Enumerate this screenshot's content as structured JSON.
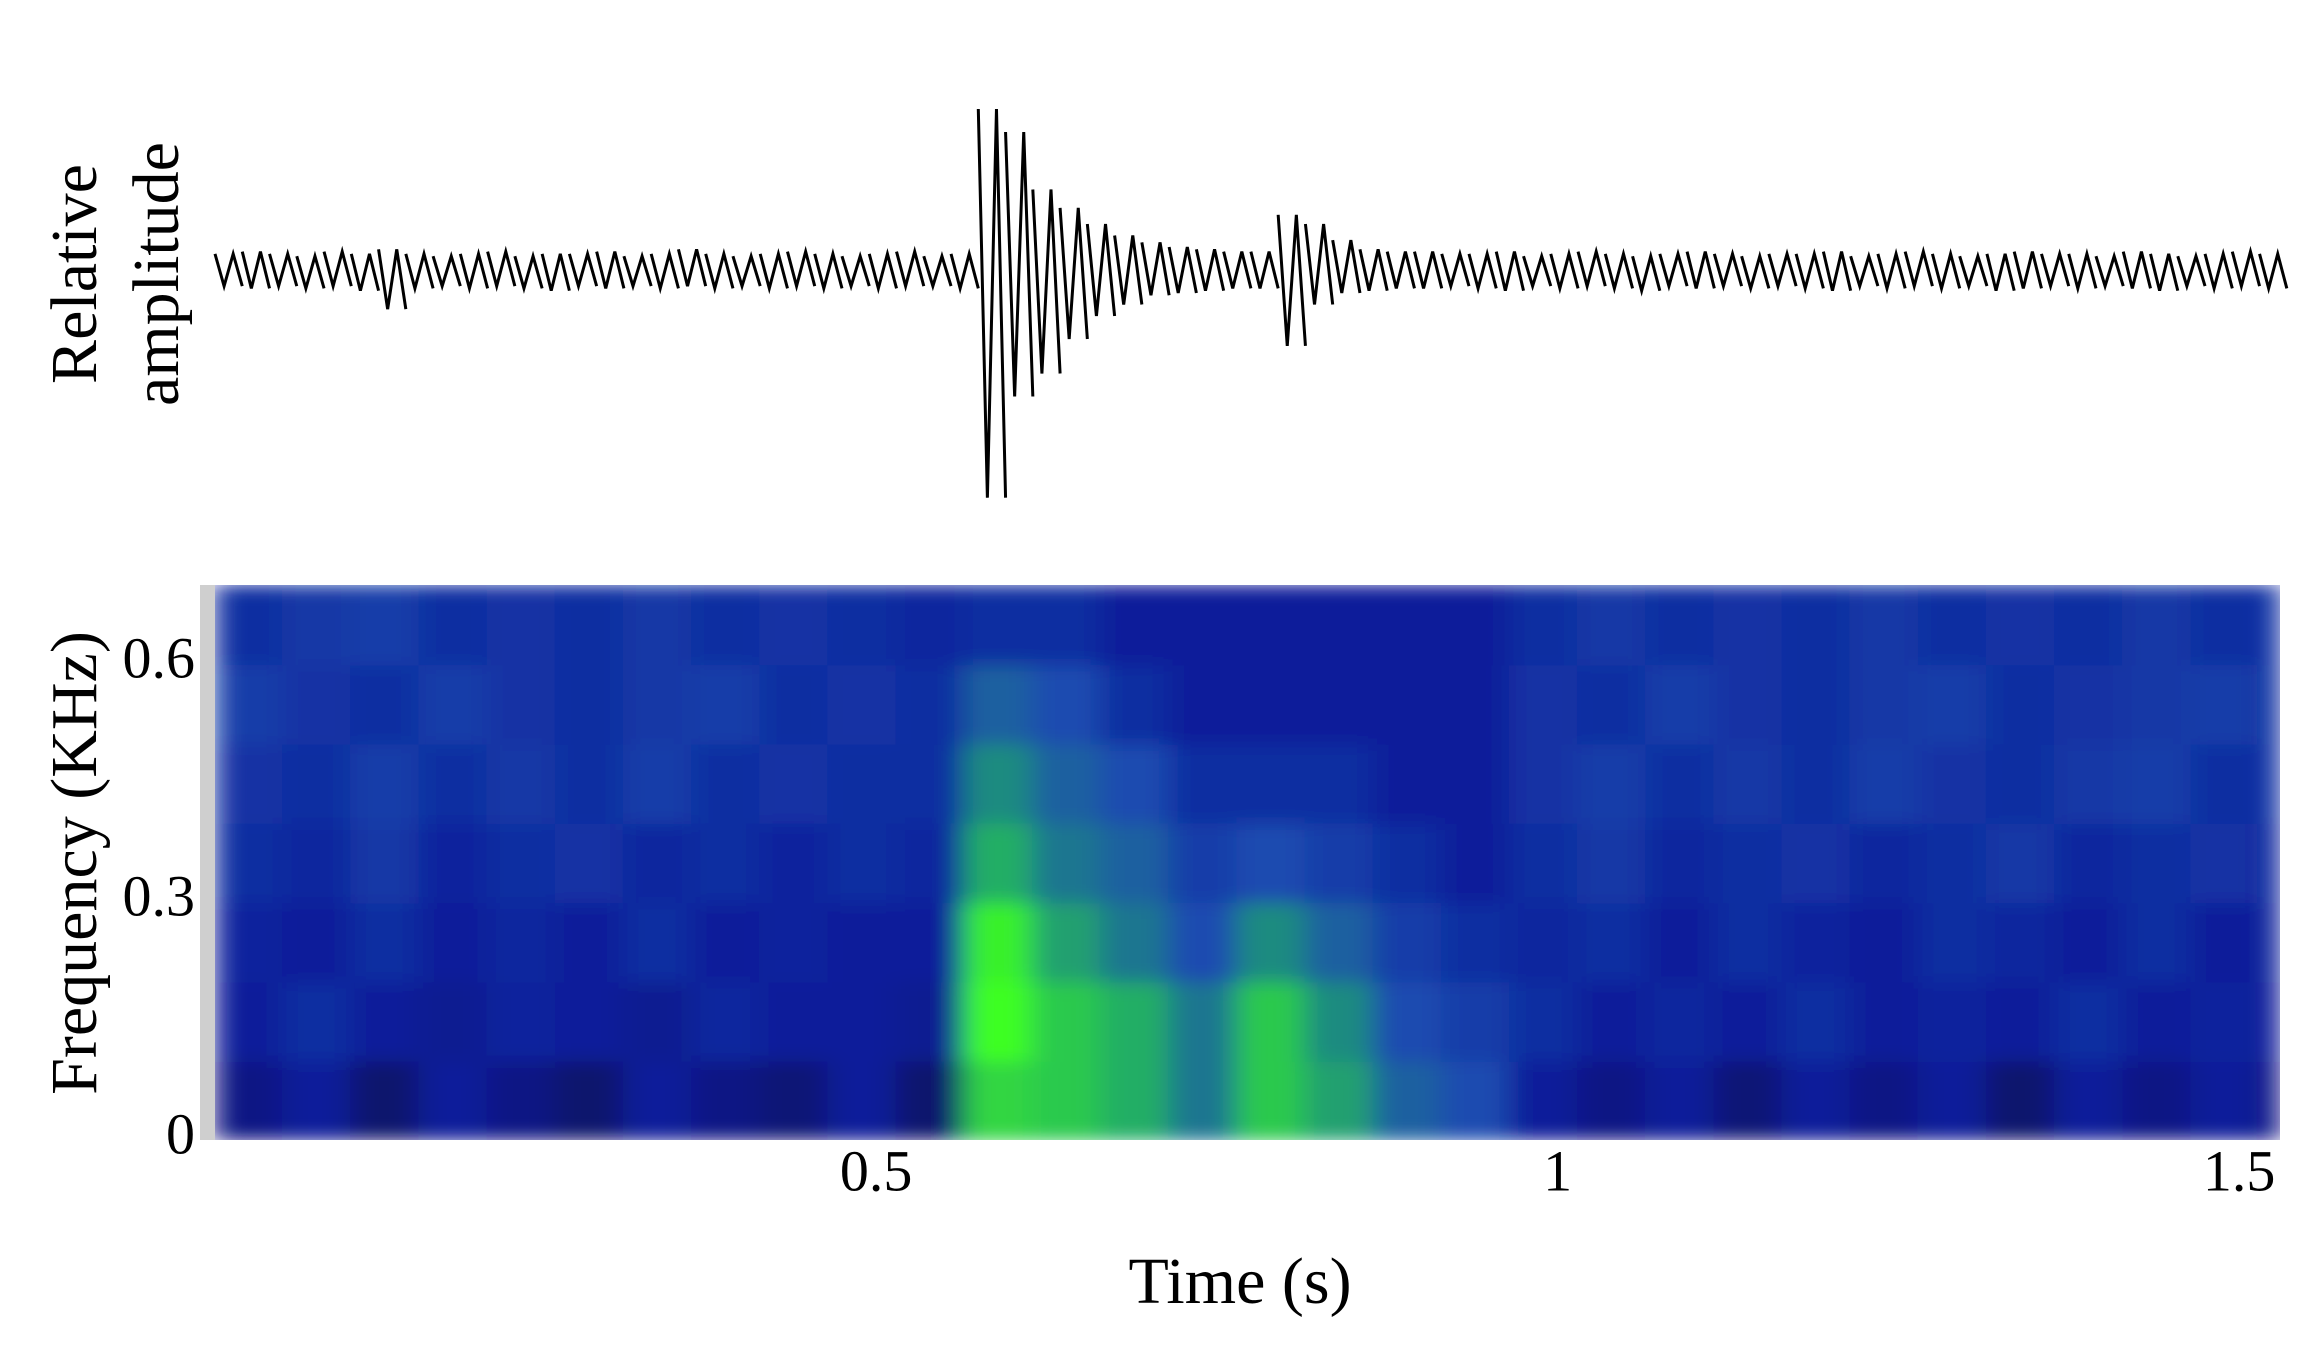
{
  "chart_data": [
    {
      "type": "waveform",
      "ylabel": [
        "Relative",
        "amplitude"
      ],
      "color": "#000000",
      "xlim": [
        0.015,
        1.53
      ],
      "ylim": [
        -1,
        1
      ],
      "x": [
        0.025,
        0.045,
        0.065,
        0.085,
        0.105,
        0.125,
        0.145,
        0.165,
        0.185,
        0.205,
        0.225,
        0.245,
        0.265,
        0.285,
        0.305,
        0.325,
        0.345,
        0.365,
        0.385,
        0.405,
        0.425,
        0.445,
        0.465,
        0.485,
        0.505,
        0.525,
        0.545,
        0.565,
        0.585,
        0.605,
        0.625,
        0.645,
        0.665,
        0.685,
        0.705,
        0.725,
        0.745,
        0.765,
        0.785,
        0.805,
        0.825,
        0.845,
        0.865,
        0.885,
        0.905,
        0.925,
        0.945,
        0.965,
        0.985,
        1.005,
        1.025,
        1.045,
        1.065,
        1.085,
        1.105,
        1.125,
        1.145,
        1.165,
        1.185,
        1.205,
        1.225,
        1.245,
        1.265,
        1.285,
        1.305,
        1.325,
        1.345,
        1.365,
        1.385,
        1.405,
        1.425,
        1.445,
        1.465,
        1.485,
        1.505,
        1.525
      ],
      "values_max": [
        0.07,
        0.08,
        0.07,
        0.06,
        0.08,
        0.07,
        0.09,
        0.07,
        0.06,
        0.07,
        0.08,
        0.06,
        0.07,
        0.07,
        0.08,
        0.06,
        0.07,
        0.09,
        0.07,
        0.06,
        0.07,
        0.08,
        0.07,
        0.06,
        0.07,
        0.08,
        0.06,
        0.07,
        0.7,
        0.6,
        0.35,
        0.27,
        0.2,
        0.15,
        0.12,
        0.1,
        0.09,
        0.08,
        0.08,
        0.24,
        0.2,
        0.13,
        0.09,
        0.08,
        0.08,
        0.07,
        0.07,
        0.08,
        0.06,
        0.07,
        0.08,
        0.07,
        0.06,
        0.07,
        0.08,
        0.07,
        0.06,
        0.07,
        0.07,
        0.08,
        0.06,
        0.07,
        0.08,
        0.07,
        0.06,
        0.07,
        0.08,
        0.07,
        0.07,
        0.06,
        0.08,
        0.07,
        0.06,
        0.07,
        0.08,
        0.07
      ],
      "values_min": [
        -0.07,
        -0.08,
        -0.07,
        -0.08,
        -0.07,
        -0.09,
        -0.17,
        -0.08,
        -0.07,
        -0.08,
        -0.07,
        -0.08,
        -0.09,
        -0.07,
        -0.08,
        -0.07,
        -0.08,
        -0.07,
        -0.08,
        -0.07,
        -0.08,
        -0.07,
        -0.08,
        -0.07,
        -0.08,
        -0.07,
        -0.07,
        -0.08,
        -0.99,
        -0.55,
        -0.45,
        -0.3,
        -0.2,
        -0.15,
        -0.11,
        -0.1,
        -0.09,
        -0.08,
        -0.08,
        -0.33,
        -0.15,
        -0.1,
        -0.09,
        -0.08,
        -0.08,
        -0.07,
        -0.08,
        -0.09,
        -0.07,
        -0.08,
        -0.07,
        -0.08,
        -0.09,
        -0.07,
        -0.08,
        -0.07,
        -0.08,
        -0.07,
        -0.08,
        -0.09,
        -0.07,
        -0.08,
        -0.07,
        -0.08,
        -0.07,
        -0.09,
        -0.08,
        -0.07,
        -0.08,
        -0.07,
        -0.08,
        -0.09,
        -0.07,
        -0.08,
        -0.07,
        -0.08
      ]
    },
    {
      "type": "heatmap",
      "xlabel": "Time (s)",
      "ylabel": "Frequency (KHz)",
      "xlim": [
        0.015,
        1.53
      ],
      "ylim": [
        0,
        0.7
      ],
      "xticks": [
        0.5,
        1,
        1.5
      ],
      "yticks": [
        0,
        0.3,
        0.6
      ],
      "colorscale": [
        [
          0,
          "#000014"
        ],
        [
          0.3,
          "#0c1e9a"
        ],
        [
          0.45,
          "#1c4cb0"
        ],
        [
          0.65,
          "#20a070"
        ],
        [
          1,
          "#3cff20"
        ]
      ],
      "xbins": [
        0.015,
        0.065,
        0.115,
        0.165,
        0.215,
        0.265,
        0.315,
        0.365,
        0.415,
        0.465,
        0.515,
        0.565,
        0.615,
        0.665,
        0.715,
        0.765,
        0.815,
        0.865,
        0.915,
        0.965,
        1.015,
        1.065,
        1.115,
        1.165,
        1.215,
        1.265,
        1.315,
        1.365,
        1.415,
        1.465,
        1.515,
        1.53
      ],
      "ybins": [
        0,
        0.1,
        0.2,
        0.3,
        0.4,
        0.5,
        0.6,
        0.7
      ],
      "z": [
        [
          0.25,
          0.3,
          0.2,
          0.3,
          0.25,
          0.2,
          0.3,
          0.25,
          0.22,
          0.3,
          0.2,
          0.85,
          0.8,
          0.7,
          0.55,
          0.8,
          0.65,
          0.5,
          0.45,
          0.3,
          0.25,
          0.3,
          0.22,
          0.3,
          0.25,
          0.3,
          0.2,
          0.3,
          0.25,
          0.3,
          0.25
        ],
        [
          0.3,
          0.35,
          0.3,
          0.28,
          0.32,
          0.3,
          0.28,
          0.33,
          0.3,
          0.3,
          0.28,
          1.0,
          0.8,
          0.7,
          0.55,
          0.8,
          0.6,
          0.45,
          0.4,
          0.35,
          0.3,
          0.33,
          0.3,
          0.35,
          0.3,
          0.32,
          0.3,
          0.35,
          0.3,
          0.32,
          0.3
        ],
        [
          0.32,
          0.3,
          0.35,
          0.3,
          0.33,
          0.3,
          0.35,
          0.3,
          0.32,
          0.3,
          0.3,
          0.95,
          0.65,
          0.55,
          0.45,
          0.6,
          0.5,
          0.4,
          0.35,
          0.33,
          0.35,
          0.3,
          0.35,
          0.32,
          0.3,
          0.35,
          0.33,
          0.3,
          0.35,
          0.3,
          0.33
        ],
        [
          0.35,
          0.33,
          0.38,
          0.32,
          0.35,
          0.37,
          0.33,
          0.35,
          0.32,
          0.35,
          0.33,
          0.7,
          0.55,
          0.5,
          0.4,
          0.45,
          0.4,
          0.35,
          0.3,
          0.35,
          0.38,
          0.33,
          0.35,
          0.37,
          0.33,
          0.35,
          0.38,
          0.33,
          0.35,
          0.37,
          0.33
        ],
        [
          0.37,
          0.35,
          0.4,
          0.35,
          0.38,
          0.35,
          0.4,
          0.35,
          0.37,
          0.35,
          0.35,
          0.6,
          0.5,
          0.45,
          0.35,
          0.35,
          0.35,
          0.3,
          0.3,
          0.37,
          0.4,
          0.35,
          0.38,
          0.35,
          0.4,
          0.37,
          0.35,
          0.38,
          0.4,
          0.35,
          0.37
        ],
        [
          0.4,
          0.37,
          0.35,
          0.4,
          0.37,
          0.35,
          0.38,
          0.4,
          0.35,
          0.37,
          0.35,
          0.5,
          0.45,
          0.35,
          0.3,
          0.3,
          0.3,
          0.3,
          0.3,
          0.37,
          0.35,
          0.4,
          0.37,
          0.35,
          0.38,
          0.4,
          0.35,
          0.37,
          0.38,
          0.4,
          0.35
        ],
        [
          0.35,
          0.38,
          0.4,
          0.35,
          0.37,
          0.35,
          0.38,
          0.35,
          0.37,
          0.35,
          0.33,
          0.35,
          0.35,
          0.3,
          0.3,
          0.3,
          0.3,
          0.3,
          0.3,
          0.35,
          0.38,
          0.35,
          0.37,
          0.35,
          0.38,
          0.35,
          0.37,
          0.35,
          0.38,
          0.35,
          0.37
        ]
      ]
    }
  ]
}
